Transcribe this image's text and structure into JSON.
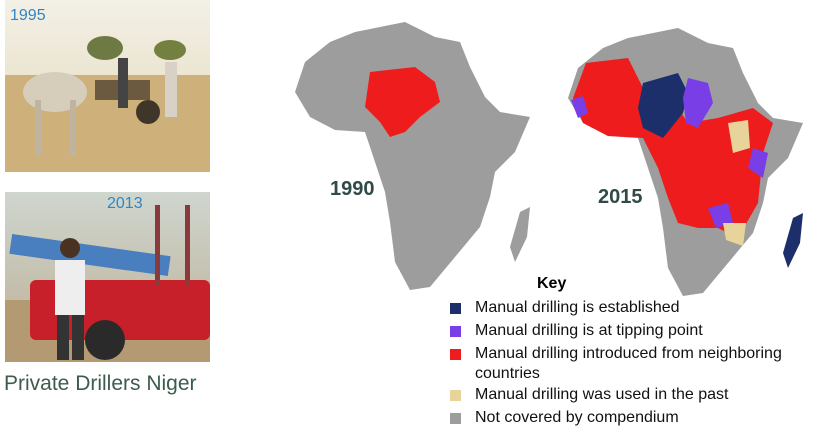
{
  "photos": [
    {
      "label": "1995"
    },
    {
      "label": "2013"
    }
  ],
  "caption": "Private Drillers Niger",
  "maps": [
    {
      "label": "1990"
    },
    {
      "label": "2015"
    }
  ],
  "key": {
    "title": "Key",
    "items": [
      {
        "label": "Manual drilling is established",
        "color": "#1c2f6b"
      },
      {
        "label": "Manual drilling is at tipping point",
        "color": "#7a3ee6"
      },
      {
        "label": "Manual drilling introduced from neighboring countries",
        "color": "#ee1c1c"
      },
      {
        "label": "Manual drilling was used in the past",
        "color": "#e8d49a"
      },
      {
        "label": "Not covered by compendium",
        "color": "#9d9d9d"
      }
    ]
  }
}
